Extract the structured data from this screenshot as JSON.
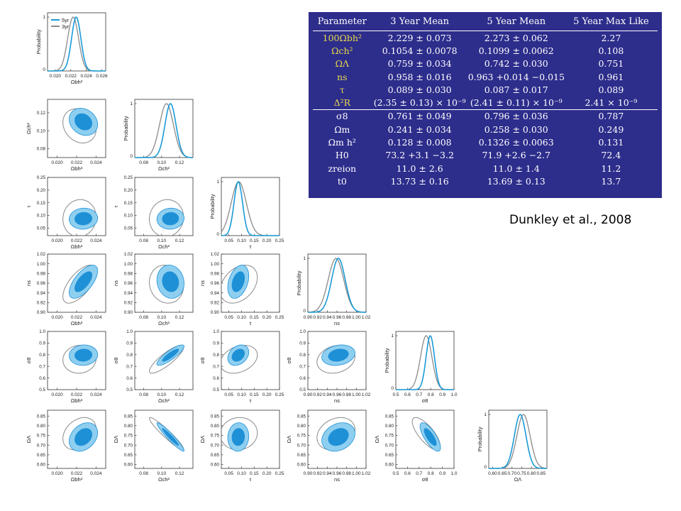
{
  "figure": {
    "params": [
      "Ωbh²",
      "Ωch²",
      "τ",
      "ns",
      "σ8",
      "ΩΛ"
    ],
    "means": [
      0.0227,
      0.1099,
      0.087,
      0.963,
      0.796,
      0.742
    ],
    "sigmas": [
      0.0006,
      0.0062,
      0.017,
      0.014,
      0.036,
      0.03
    ],
    "means_3yr": [
      0.0223,
      0.1054,
      0.089,
      0.958,
      0.761,
      0.759
    ],
    "sigmas_3yr": [
      0.0007,
      0.0078,
      0.03,
      0.016,
      0.049,
      0.034
    ],
    "ticks": [
      [
        "0.020",
        "0.022",
        "0.024"
      ],
      [
        "0.08",
        "0.10",
        "0.12"
      ],
      [
        "0.05",
        "0.10",
        "0.15",
        "0.20",
        "0.25"
      ],
      [
        "0.90",
        "0.92",
        "0.94",
        "0.96",
        "0.98",
        "1.00",
        "1.02"
      ],
      [
        "0.5",
        "0.6",
        "0.7",
        "0.8",
        "0.9",
        "1.0"
      ],
      [
        "0.60",
        "0.65",
        "0.70",
        "0.75",
        "0.80",
        "0.85"
      ]
    ],
    "tick_values": [
      [
        0.02,
        0.022,
        0.024
      ],
      [
        0.08,
        0.1,
        0.12
      ],
      [
        0.05,
        0.1,
        0.15,
        0.2,
        0.25
      ],
      [
        0.9,
        0.92,
        0.94,
        0.96,
        0.98,
        1.0,
        1.02
      ],
      [
        0.5,
        0.6,
        0.7,
        0.8,
        0.9,
        1.0
      ],
      [
        0.6,
        0.65,
        0.7,
        0.75,
        0.8,
        0.85
      ]
    ],
    "ranges": [
      [
        0.019,
        0.025
      ],
      [
        0.07,
        0.135
      ],
      [
        0.02,
        0.25
      ],
      [
        0.9,
        1.02
      ],
      [
        0.5,
        1.0
      ],
      [
        0.58,
        0.88
      ]
    ],
    "first_panel_xticks": [
      "0.020",
      "0.022",
      "0.024",
      "0.026"
    ],
    "first_panel_xvalues": [
      0.02,
      0.022,
      0.024,
      0.026
    ],
    "first_panel_range": [
      0.019,
      0.0265
    ],
    "y_label_probability": "Probability",
    "legend": [
      "5yr",
      "3yr"
    ],
    "colors": {
      "five_year": "#1a9bd7",
      "three_year": "#8a8a8a",
      "inner_fill": "#1e90d6",
      "outer_fill": "#8ecff0"
    }
  },
  "table": {
    "headers": [
      "Parameter",
      "3 Year Mean",
      "5 Year Mean",
      "5 Year Max Like"
    ],
    "rows": [
      [
        "100Ωbh²",
        "2.229 ± 0.073",
        "2.273 ± 0.062",
        "2.27"
      ],
      [
        "Ωch²",
        "0.1054 ± 0.0078",
        "0.1099 ± 0.0062",
        "0.108"
      ],
      [
        "ΩΛ",
        "0.759 ± 0.034",
        "0.742 ± 0.030",
        "0.751"
      ],
      [
        "ns",
        "0.958 ± 0.016",
        "0.963 +0.014 −0.015",
        "0.961"
      ],
      [
        "τ",
        "0.089 ± 0.030",
        "0.087 ± 0.017",
        "0.089"
      ],
      [
        "Δ²R",
        "(2.35 ± 0.13) × 10⁻⁹",
        "(2.41 ± 0.11) × 10⁻⁹",
        "2.41 × 10⁻⁹"
      ]
    ],
    "derived_rows": [
      [
        "σ8",
        "0.761 ± 0.049",
        "0.796 ± 0.036",
        "0.787"
      ],
      [
        "Ωm",
        "0.241 ± 0.034",
        "0.258 ± 0.030",
        "0.249"
      ],
      [
        "Ωm h²",
        "0.128 ± 0.008",
        "0.1326 ± 0.0063",
        "0.131"
      ],
      [
        "H0",
        "73.2 +3.1 −3.2",
        "71.9 +2.6 −2.7",
        "72.4"
      ],
      [
        "zreion",
        "11.0 ± 2.6",
        "11.0 ± 1.4",
        "11.2"
      ],
      [
        "t0",
        "13.73 ± 0.16",
        "13.69 ± 0.13",
        "13.7"
      ]
    ],
    "background": "#2d2d8c",
    "param_color": "#e8d84a"
  },
  "citation": "Dunkley et al., 2008"
}
